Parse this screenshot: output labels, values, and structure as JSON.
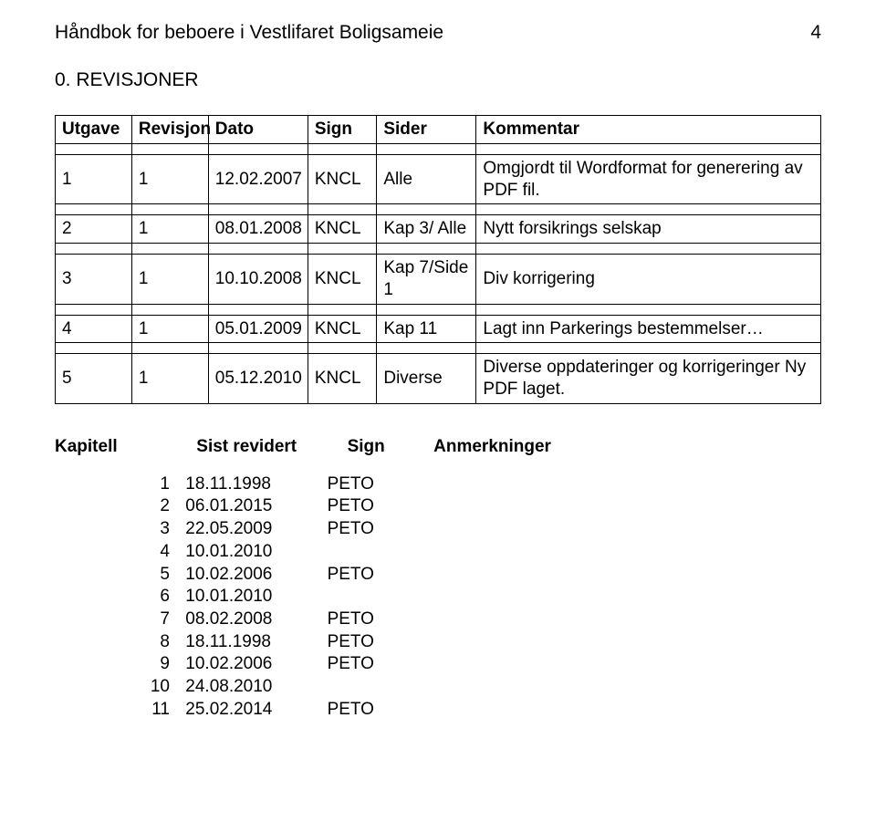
{
  "header": {
    "title": "Håndbok for beboere i Vestlifaret Boligsameie",
    "page_number": "4"
  },
  "section": {
    "title": "0. REVISJONER"
  },
  "revisions_table": {
    "columns": [
      "Utgave",
      "Revisjon",
      "Dato",
      "Sign",
      "Sider",
      "Kommentar"
    ],
    "rows": [
      {
        "utgave": "1",
        "revisjon": "1",
        "dato": "12.02.2007",
        "sign": "KNCL",
        "sider": "Alle",
        "kommentar": "Omgjordt til Wordformat for generering av PDF fil."
      },
      {
        "utgave": "2",
        "revisjon": "1",
        "dato": "08.01.2008",
        "sign": "KNCL",
        "sider": "Kap 3/ Alle",
        "kommentar": "Nytt forsikrings selskap"
      },
      {
        "utgave": "3",
        "revisjon": "1",
        "dato": "10.10.2008",
        "sign": "KNCL",
        "sider": "Kap 7/Side 1",
        "kommentar": "Div korrigering"
      },
      {
        "utgave": "4",
        "revisjon": "1",
        "dato": "05.01.2009",
        "sign": "KNCL",
        "sider": "Kap 11",
        "kommentar": "Lagt inn Parkerings bestemmelser…"
      },
      {
        "utgave": "5",
        "revisjon": "1",
        "dato": "05.12.2010",
        "sign": "KNCL",
        "sider": "Diverse",
        "kommentar": "Diverse oppdateringer og korrigeringer Ny PDF laget."
      }
    ]
  },
  "kapitell": {
    "heading": {
      "col1": "Kapitell",
      "col2": "Sist revidert",
      "col3": "Sign",
      "col4": "Anmerkninger"
    },
    "rows": [
      {
        "num": "1",
        "date": "18.11.1998",
        "sign": "PETO"
      },
      {
        "num": "2",
        "date": "06.01.2015",
        "sign": "PETO"
      },
      {
        "num": "3",
        "date": "22.05.2009",
        "sign": "PETO"
      },
      {
        "num": "4",
        "date": "10.01.2010",
        "sign": ""
      },
      {
        "num": "5",
        "date": "10.02.2006",
        "sign": "PETO"
      },
      {
        "num": "6",
        "date": "10.01.2010",
        "sign": ""
      },
      {
        "num": "7",
        "date": "08.02.2008",
        "sign": "PETO"
      },
      {
        "num": "8",
        "date": "18.11.1998",
        "sign": "PETO"
      },
      {
        "num": "9",
        "date": "10.02.2006",
        "sign": "PETO"
      },
      {
        "num": "10",
        "date": "24.08.2010",
        "sign": ""
      },
      {
        "num": "11",
        "date": "25.02.2014",
        "sign": "PETO"
      }
    ]
  }
}
